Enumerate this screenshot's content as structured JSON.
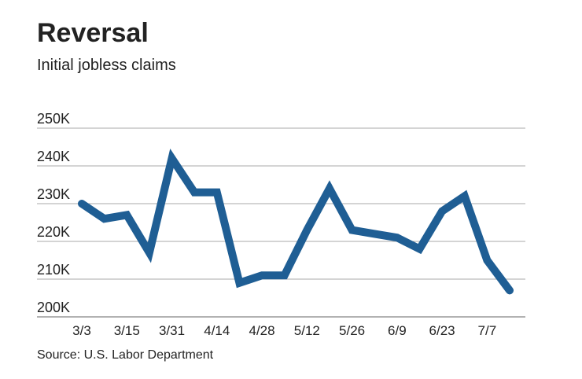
{
  "chart_data": {
    "type": "line",
    "title": "Reversal",
    "subtitle": "Initial jobless claims",
    "source": "Source: U.S. Labor Department",
    "categories": [
      "3/3",
      null,
      "3/15",
      null,
      "3/31",
      null,
      "4/14",
      null,
      "4/28",
      null,
      "5/12",
      null,
      "5/26",
      null,
      "6/9",
      null,
      "6/23",
      null,
      "7/7",
      null
    ],
    "series": [
      {
        "name": "Initial jobless claims",
        "color": "#1f5e94",
        "values": [
          230000,
          226000,
          227000,
          217000,
          242000,
          233000,
          233000,
          209000,
          211000,
          211000,
          223000,
          234000,
          223000,
          222000,
          221000,
          218000,
          228000,
          232000,
          215000,
          207000
        ]
      }
    ],
    "ylim": [
      200000,
      250000
    ],
    "yticks": [
      {
        "value": 200000,
        "label": "200K"
      },
      {
        "value": 210000,
        "label": "210K"
      },
      {
        "value": 220000,
        "label": "220K"
      },
      {
        "value": 230000,
        "label": "230K"
      },
      {
        "value": 240000,
        "label": "240K"
      },
      {
        "value": 250000,
        "label": "250K"
      }
    ],
    "grid": true
  }
}
